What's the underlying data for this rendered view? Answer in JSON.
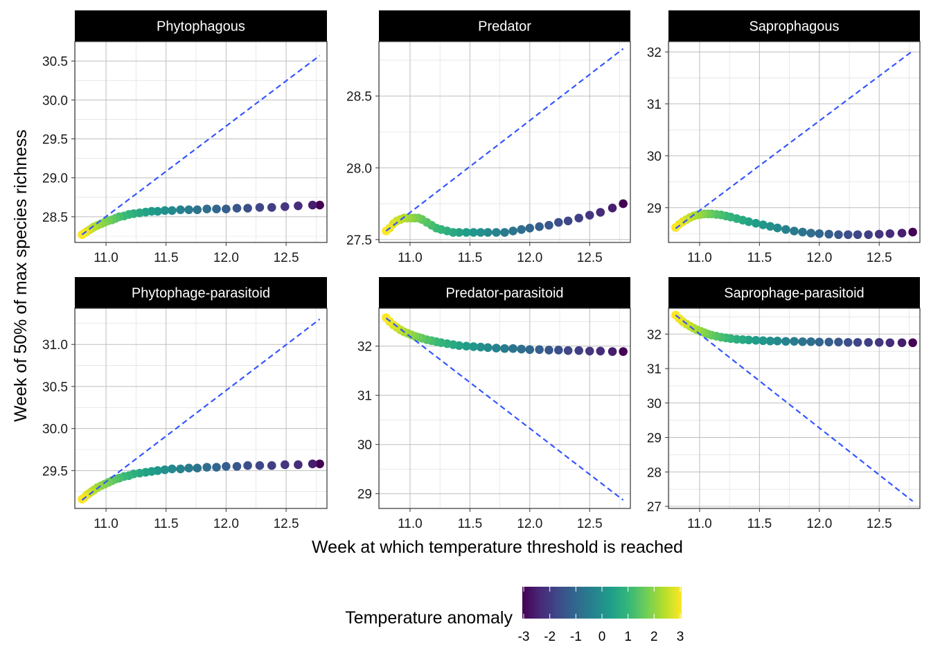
{
  "figure": {
    "xlabel": "Week at which temperature threshold is reached",
    "ylabel": "Week of 50% of max species richness"
  },
  "legend": {
    "title": "Temperature anomaly",
    "colormap": "viridis",
    "range": [
      -3,
      3
    ],
    "ticks": [
      "-3",
      "-2",
      "-1",
      "0",
      "1",
      "2",
      "3"
    ],
    "colors": [
      "#440154",
      "#482878",
      "#3e4989",
      "#31688e",
      "#26828e",
      "#1f9e89",
      "#35b779",
      "#6ece58",
      "#b5de2b",
      "#fde725"
    ]
  },
  "style": {
    "strip_background": "#000000",
    "panel_border": "#333333",
    "grid_color": "#d9d9d9",
    "reference_line_color": "#3355ff",
    "reference_line_style": "dashed"
  },
  "chart_data": [
    {
      "type": "scatter",
      "title": "Phytophagous",
      "xlim": [
        10.74,
        12.84
      ],
      "ylim": [
        28.17,
        30.75
      ],
      "xticks": [
        11.0,
        11.5,
        12.0,
        12.5
      ],
      "yticks": [
        28.5,
        29.0,
        29.5,
        30.0,
        30.5
      ],
      "ytick_labels": [
        "28.5",
        "29.0",
        "29.5",
        "30.0",
        "30.5"
      ],
      "reference_line": {
        "x": [
          10.8,
          12.78
        ],
        "y": [
          28.27,
          30.57
        ]
      },
      "x": [
        10.8,
        10.82,
        10.84,
        10.86,
        10.88,
        10.9,
        10.93,
        10.96,
        10.99,
        11.02,
        11.05,
        11.08,
        11.11,
        11.15,
        11.19,
        11.23,
        11.28,
        11.33,
        11.38,
        11.43,
        11.49,
        11.55,
        11.62,
        11.69,
        11.76,
        11.84,
        11.92,
        12.0,
        12.09,
        12.18,
        12.28,
        12.38,
        12.49,
        12.6,
        12.72,
        12.78
      ],
      "y": [
        28.27,
        28.29,
        28.31,
        28.33,
        28.35,
        28.37,
        28.39,
        28.41,
        28.43,
        28.45,
        28.46,
        28.48,
        28.5,
        28.51,
        28.53,
        28.54,
        28.55,
        28.56,
        28.57,
        28.57,
        28.58,
        28.58,
        28.59,
        28.59,
        28.59,
        28.6,
        28.6,
        28.6,
        28.61,
        28.61,
        28.62,
        28.62,
        28.63,
        28.64,
        28.65,
        28.65
      ],
      "anomaly": [
        3.0,
        2.85,
        2.7,
        2.55,
        2.4,
        2.25,
        2.1,
        1.95,
        1.8,
        1.65,
        1.5,
        1.35,
        1.2,
        1.05,
        0.9,
        0.75,
        0.6,
        0.45,
        0.3,
        0.15,
        0.0,
        -0.17,
        -0.34,
        -0.51,
        -0.68,
        -0.85,
        -1.02,
        -1.19,
        -1.36,
        -1.53,
        -1.7,
        -1.87,
        -2.05,
        -2.25,
        -2.5,
        -3.0
      ]
    },
    {
      "type": "scatter",
      "title": "Predator",
      "xlim": [
        10.74,
        12.84
      ],
      "ylim": [
        27.48,
        28.88
      ],
      "xticks": [
        11.0,
        11.5,
        12.0,
        12.5
      ],
      "yticks": [
        27.5,
        28.0,
        28.5
      ],
      "ytick_labels": [
        "27.5",
        "28.0",
        "28.5"
      ],
      "reference_line": {
        "x": [
          10.8,
          12.78
        ],
        "y": [
          27.56,
          28.83
        ]
      },
      "x": [
        10.8,
        10.83,
        10.86,
        10.89,
        10.92,
        10.95,
        10.98,
        11.01,
        11.04,
        11.07,
        11.1,
        11.14,
        11.18,
        11.22,
        11.26,
        11.31,
        11.36,
        11.41,
        11.47,
        11.53,
        11.59,
        11.65,
        11.72,
        11.79,
        11.86,
        11.93,
        12.0,
        12.08,
        12.16,
        12.24,
        12.32,
        12.41,
        12.5,
        12.59,
        12.69,
        12.78
      ],
      "y": [
        27.56,
        27.58,
        27.61,
        27.63,
        27.64,
        27.65,
        27.65,
        27.65,
        27.65,
        27.65,
        27.64,
        27.62,
        27.6,
        27.58,
        27.57,
        27.56,
        27.55,
        27.55,
        27.55,
        27.55,
        27.55,
        27.55,
        27.55,
        27.55,
        27.56,
        27.57,
        27.58,
        27.59,
        27.6,
        27.62,
        27.63,
        27.65,
        27.67,
        27.69,
        27.72,
        27.75
      ],
      "anomaly": [
        3.0,
        2.85,
        2.7,
        2.55,
        2.4,
        2.25,
        2.1,
        1.95,
        1.8,
        1.65,
        1.5,
        1.35,
        1.2,
        1.05,
        0.9,
        0.75,
        0.6,
        0.45,
        0.3,
        0.15,
        0.0,
        -0.17,
        -0.34,
        -0.51,
        -0.68,
        -0.85,
        -1.02,
        -1.19,
        -1.36,
        -1.53,
        -1.7,
        -1.87,
        -2.05,
        -2.25,
        -2.5,
        -3.0
      ]
    },
    {
      "type": "scatter",
      "title": "Saprophagous",
      "xlim": [
        10.74,
        12.84
      ],
      "ylim": [
        28.33,
        32.2
      ],
      "xticks": [
        11.0,
        11.5,
        12.0,
        12.5
      ],
      "yticks": [
        29,
        30,
        31,
        32
      ],
      "ytick_labels": [
        "29",
        "30",
        "31",
        "32"
      ],
      "reference_line": {
        "x": [
          10.8,
          12.78
        ],
        "y": [
          28.6,
          32.02
        ]
      },
      "x": [
        10.8,
        10.83,
        10.86,
        10.89,
        10.92,
        10.95,
        10.98,
        11.01,
        11.04,
        11.07,
        11.1,
        11.14,
        11.18,
        11.22,
        11.26,
        11.31,
        11.36,
        11.41,
        11.47,
        11.53,
        11.59,
        11.65,
        11.72,
        11.79,
        11.86,
        11.93,
        12.0,
        12.08,
        12.16,
        12.24,
        12.32,
        12.41,
        12.5,
        12.59,
        12.69,
        12.78
      ],
      "y": [
        28.62,
        28.68,
        28.73,
        28.77,
        28.81,
        28.84,
        28.86,
        28.87,
        28.88,
        28.88,
        28.88,
        28.87,
        28.86,
        28.84,
        28.82,
        28.79,
        28.76,
        28.73,
        28.7,
        28.67,
        28.64,
        28.61,
        28.58,
        28.55,
        28.53,
        28.51,
        28.5,
        28.49,
        28.48,
        28.48,
        28.48,
        28.48,
        28.49,
        28.5,
        28.51,
        28.53
      ],
      "anomaly": [
        3.0,
        2.85,
        2.7,
        2.55,
        2.4,
        2.25,
        2.1,
        1.95,
        1.8,
        1.65,
        1.5,
        1.35,
        1.2,
        1.05,
        0.9,
        0.75,
        0.6,
        0.45,
        0.3,
        0.15,
        0.0,
        -0.17,
        -0.34,
        -0.51,
        -0.68,
        -0.85,
        -1.02,
        -1.19,
        -1.36,
        -1.53,
        -1.7,
        -1.87,
        -2.05,
        -2.25,
        -2.5,
        -3.0
      ]
    },
    {
      "type": "scatter",
      "title": "Phytophage-parasitoid",
      "xlim": [
        10.74,
        12.84
      ],
      "ylim": [
        29.05,
        31.43
      ],
      "xticks": [
        11.0,
        11.5,
        12.0,
        12.5
      ],
      "yticks": [
        29.5,
        30.0,
        30.5,
        31.0
      ],
      "ytick_labels": [
        "29.5",
        "30.0",
        "30.5",
        "31.0"
      ],
      "reference_line": {
        "x": [
          10.8,
          12.78
        ],
        "y": [
          29.15,
          31.3
        ]
      },
      "x": [
        10.8,
        10.82,
        10.84,
        10.86,
        10.88,
        10.9,
        10.93,
        10.96,
        10.99,
        11.02,
        11.05,
        11.08,
        11.11,
        11.15,
        11.19,
        11.23,
        11.28,
        11.33,
        11.38,
        11.43,
        11.49,
        11.55,
        11.62,
        11.69,
        11.76,
        11.84,
        11.92,
        12.0,
        12.09,
        12.18,
        12.28,
        12.38,
        12.49,
        12.6,
        12.72,
        12.78
      ],
      "y": [
        29.16,
        29.18,
        29.21,
        29.23,
        29.25,
        29.27,
        29.3,
        29.32,
        29.34,
        29.36,
        29.38,
        29.4,
        29.41,
        29.43,
        29.44,
        29.46,
        29.47,
        29.48,
        29.49,
        29.5,
        29.51,
        29.52,
        29.52,
        29.53,
        29.53,
        29.54,
        29.54,
        29.55,
        29.55,
        29.56,
        29.56,
        29.56,
        29.57,
        29.57,
        29.58,
        29.58
      ],
      "anomaly": [
        3.0,
        2.85,
        2.7,
        2.55,
        2.4,
        2.25,
        2.1,
        1.95,
        1.8,
        1.65,
        1.5,
        1.35,
        1.2,
        1.05,
        0.9,
        0.75,
        0.6,
        0.45,
        0.3,
        0.15,
        0.0,
        -0.17,
        -0.34,
        -0.51,
        -0.68,
        -0.85,
        -1.02,
        -1.19,
        -1.36,
        -1.53,
        -1.7,
        -1.87,
        -2.05,
        -2.25,
        -2.5,
        -3.0
      ]
    },
    {
      "type": "scatter",
      "title": "Predator-parasitoid",
      "xlim": [
        10.74,
        12.84
      ],
      "ylim": [
        28.7,
        32.77
      ],
      "xticks": [
        11.0,
        11.5,
        12.0,
        12.5
      ],
      "yticks": [
        29,
        30,
        31,
        32
      ],
      "ytick_labels": [
        "29",
        "30",
        "31",
        "32"
      ],
      "reference_line": {
        "x": [
          10.8,
          12.78
        ],
        "y": [
          32.57,
          28.87
        ]
      },
      "x": [
        10.8,
        10.83,
        10.86,
        10.89,
        10.92,
        10.95,
        10.98,
        11.01,
        11.04,
        11.07,
        11.1,
        11.14,
        11.18,
        11.22,
        11.26,
        11.31,
        11.36,
        11.41,
        11.47,
        11.53,
        11.59,
        11.65,
        11.72,
        11.79,
        11.86,
        11.93,
        12.0,
        12.08,
        12.16,
        12.24,
        12.32,
        12.41,
        12.5,
        12.59,
        12.69,
        12.78
      ],
      "y": [
        32.58,
        32.5,
        32.43,
        32.38,
        32.33,
        32.29,
        32.26,
        32.23,
        32.2,
        32.18,
        32.16,
        32.13,
        32.11,
        32.09,
        32.07,
        32.05,
        32.03,
        32.01,
        32.0,
        31.99,
        31.98,
        31.97,
        31.96,
        31.95,
        31.95,
        31.94,
        31.93,
        31.93,
        31.92,
        31.92,
        31.91,
        31.91,
        31.9,
        31.9,
        31.89,
        31.89
      ],
      "anomaly": [
        3.0,
        2.85,
        2.7,
        2.55,
        2.4,
        2.25,
        2.1,
        1.95,
        1.8,
        1.65,
        1.5,
        1.35,
        1.2,
        1.05,
        0.9,
        0.75,
        0.6,
        0.45,
        0.3,
        0.15,
        0.0,
        -0.17,
        -0.34,
        -0.51,
        -0.68,
        -0.85,
        -1.02,
        -1.19,
        -1.36,
        -1.53,
        -1.7,
        -1.87,
        -2.05,
        -2.25,
        -2.5,
        -3.0
      ]
    },
    {
      "type": "scatter",
      "title": "Saprophage-parasitoid",
      "xlim": [
        10.74,
        12.84
      ],
      "ylim": [
        26.94,
        32.75
      ],
      "xticks": [
        11.0,
        11.5,
        12.0,
        12.5
      ],
      "yticks": [
        27,
        28,
        29,
        30,
        31,
        32
      ],
      "ytick_labels": [
        "27",
        "28",
        "29",
        "30",
        "31",
        "32"
      ],
      "reference_line": {
        "x": [
          10.8,
          12.78
        ],
        "y": [
          32.55,
          27.15
        ]
      },
      "x": [
        10.8,
        10.83,
        10.86,
        10.89,
        10.92,
        10.95,
        10.98,
        11.01,
        11.04,
        11.07,
        11.1,
        11.14,
        11.18,
        11.22,
        11.26,
        11.31,
        11.36,
        11.41,
        11.47,
        11.53,
        11.59,
        11.65,
        11.72,
        11.79,
        11.86,
        11.93,
        12.0,
        12.08,
        12.16,
        12.24,
        12.32,
        12.41,
        12.5,
        12.59,
        12.69,
        12.78
      ],
      "y": [
        32.55,
        32.45,
        32.36,
        32.29,
        32.23,
        32.17,
        32.12,
        32.08,
        32.04,
        32.0,
        31.97,
        31.94,
        31.91,
        31.89,
        31.87,
        31.85,
        31.84,
        31.83,
        31.82,
        31.81,
        31.8,
        31.8,
        31.79,
        31.79,
        31.78,
        31.78,
        31.77,
        31.77,
        31.77,
        31.76,
        31.76,
        31.76,
        31.76,
        31.75,
        31.75,
        31.75
      ],
      "anomaly": [
        3.0,
        2.85,
        2.7,
        2.55,
        2.4,
        2.25,
        2.1,
        1.95,
        1.8,
        1.65,
        1.5,
        1.35,
        1.2,
        1.05,
        0.9,
        0.75,
        0.6,
        0.45,
        0.3,
        0.15,
        0.0,
        -0.17,
        -0.34,
        -0.51,
        -0.68,
        -0.85,
        -1.02,
        -1.19,
        -1.36,
        -1.53,
        -1.7,
        -1.87,
        -2.05,
        -2.25,
        -2.5,
        -3.0
      ]
    }
  ]
}
